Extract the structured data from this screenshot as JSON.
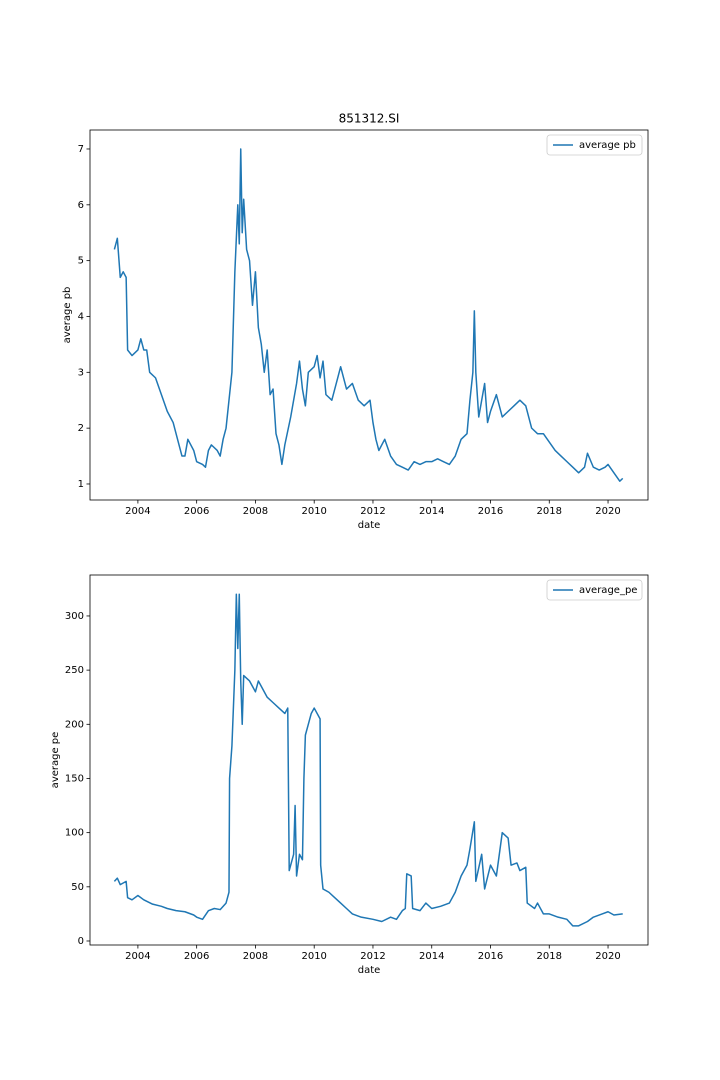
{
  "chart_data": [
    {
      "type": "line",
      "title": "851312.SI",
      "x_label": "date",
      "y_label": "average pb",
      "xlim": [
        2002.37,
        2021.36
      ],
      "ylim": [
        0.713,
        7.34
      ],
      "xticks": [
        2004,
        2006,
        2008,
        2010,
        2012,
        2014,
        2016,
        2018,
        2020
      ],
      "yticks": [
        1,
        2,
        3,
        4,
        5,
        6,
        7
      ],
      "legend": "upper right",
      "grid": false,
      "x": [
        2003.2,
        2003.3,
        2003.4,
        2003.5,
        2003.6,
        2003.65,
        2003.8,
        2004.0,
        2004.1,
        2004.2,
        2004.3,
        2004.4,
        2004.6,
        2004.8,
        2005.0,
        2005.2,
        2005.4,
        2005.5,
        2005.6,
        2005.7,
        2005.9,
        2006.0,
        2006.2,
        2006.3,
        2006.4,
        2006.5,
        2006.7,
        2006.8,
        2006.9,
        2007.0,
        2007.1,
        2007.2,
        2007.3,
        2007.4,
        2007.45,
        2007.5,
        2007.55,
        2007.6,
        2007.7,
        2007.8,
        2007.9,
        2008.0,
        2008.1,
        2008.2,
        2008.3,
        2008.4,
        2008.5,
        2008.6,
        2008.7,
        2008.8,
        2008.9,
        2009.0,
        2009.2,
        2009.4,
        2009.5,
        2009.6,
        2009.7,
        2009.8,
        2010.0,
        2010.1,
        2010.2,
        2010.3,
        2010.4,
        2010.6,
        2010.8,
        2010.9,
        2011.1,
        2011.3,
        2011.5,
        2011.7,
        2011.9,
        2012.0,
        2012.1,
        2012.2,
        2012.4,
        2012.6,
        2012.8,
        2013.0,
        2013.2,
        2013.4,
        2013.6,
        2013.8,
        2014.0,
        2014.2,
        2014.4,
        2014.6,
        2014.8,
        2015.0,
        2015.2,
        2015.3,
        2015.4,
        2015.45,
        2015.5,
        2015.6,
        2015.8,
        2015.9,
        2016.0,
        2016.2,
        2016.4,
        2016.6,
        2016.8,
        2017.0,
        2017.2,
        2017.4,
        2017.6,
        2017.8,
        2018.0,
        2018.2,
        2018.4,
        2018.6,
        2018.8,
        2019.0,
        2019.2,
        2019.3,
        2019.5,
        2019.7,
        2019.9,
        2020.0,
        2020.2,
        2020.4,
        2020.5
      ],
      "series": [
        {
          "name": "average pb",
          "color": "#1f77b4",
          "values": [
            5.2,
            5.4,
            4.7,
            4.8,
            4.7,
            3.4,
            3.3,
            3.4,
            3.6,
            3.4,
            3.4,
            3.0,
            2.9,
            2.6,
            2.3,
            2.1,
            1.7,
            1.5,
            1.5,
            1.8,
            1.6,
            1.4,
            1.35,
            1.3,
            1.6,
            1.7,
            1.6,
            1.5,
            1.8,
            2.0,
            2.5,
            3.0,
            4.8,
            6.0,
            5.3,
            7.0,
            5.5,
            6.1,
            5.2,
            5.0,
            4.2,
            4.8,
            3.8,
            3.5,
            3.0,
            3.4,
            2.6,
            2.7,
            1.9,
            1.7,
            1.35,
            1.7,
            2.2,
            2.8,
            3.2,
            2.7,
            2.4,
            3.0,
            3.1,
            3.3,
            2.9,
            3.2,
            2.6,
            2.5,
            2.9,
            3.1,
            2.7,
            2.8,
            2.5,
            2.4,
            2.5,
            2.1,
            1.8,
            1.6,
            1.8,
            1.5,
            1.35,
            1.3,
            1.25,
            1.4,
            1.35,
            1.4,
            1.4,
            1.45,
            1.4,
            1.35,
            1.5,
            1.8,
            1.9,
            2.5,
            3.0,
            4.1,
            3.0,
            2.2,
            2.8,
            2.1,
            2.3,
            2.6,
            2.2,
            2.3,
            2.4,
            2.5,
            2.4,
            2.0,
            1.9,
            1.9,
            1.75,
            1.6,
            1.5,
            1.4,
            1.3,
            1.2,
            1.3,
            1.55,
            1.3,
            1.25,
            1.3,
            1.35,
            1.2,
            1.05,
            1.1
          ]
        }
      ]
    },
    {
      "type": "line",
      "x_label": "date",
      "y_label": "average pe",
      "xlim": [
        2002.37,
        2021.36
      ],
      "ylim": [
        -3.7,
        337.8
      ],
      "xticks": [
        2004,
        2006,
        2008,
        2010,
        2012,
        2014,
        2016,
        2018,
        2020
      ],
      "yticks": [
        0,
        50,
        100,
        150,
        200,
        250,
        300
      ],
      "legend": "upper right",
      "grid": false,
      "x": [
        2003.2,
        2003.3,
        2003.4,
        2003.6,
        2003.65,
        2003.8,
        2004.0,
        2004.2,
        2004.5,
        2004.8,
        2005.0,
        2005.3,
        2005.6,
        2005.9,
        2006.0,
        2006.2,
        2006.4,
        2006.6,
        2006.8,
        2007.0,
        2007.1,
        2007.12,
        2007.2,
        2007.3,
        2007.35,
        2007.4,
        2007.45,
        2007.5,
        2007.55,
        2007.6,
        2007.8,
        2008.0,
        2008.1,
        2008.2,
        2008.4,
        2008.6,
        2008.8,
        2009.0,
        2009.1,
        2009.15,
        2009.3,
        2009.35,
        2009.4,
        2009.5,
        2009.6,
        2009.65,
        2009.7,
        2009.8,
        2009.9,
        2010.0,
        2010.2,
        2010.22,
        2010.3,
        2010.5,
        2010.7,
        2010.9,
        2011.1,
        2011.3,
        2011.6,
        2012.0,
        2012.3,
        2012.6,
        2012.8,
        2013.0,
        2013.1,
        2013.15,
        2013.3,
        2013.35,
        2013.6,
        2013.8,
        2014.0,
        2014.3,
        2014.6,
        2014.8,
        2015.0,
        2015.2,
        2015.3,
        2015.45,
        2015.5,
        2015.7,
        2015.8,
        2016.0,
        2016.2,
        2016.4,
        2016.6,
        2016.7,
        2016.9,
        2017.0,
        2017.2,
        2017.25,
        2017.5,
        2017.6,
        2017.8,
        2018.0,
        2018.3,
        2018.6,
        2018.8,
        2019.0,
        2019.3,
        2019.5,
        2019.8,
        2020.0,
        2020.2,
        2020.5
      ],
      "series": [
        {
          "name": "average_pe",
          "color": "#1f77b4",
          "values": [
            55,
            58,
            52,
            55,
            40,
            38,
            42,
            38,
            34,
            32,
            30,
            28,
            27,
            24,
            22,
            20,
            28,
            30,
            29,
            35,
            45,
            150,
            180,
            250,
            320,
            270,
            320,
            240,
            200,
            245,
            240,
            230,
            240,
            235,
            225,
            220,
            215,
            210,
            215,
            65,
            80,
            125,
            60,
            80,
            75,
            150,
            190,
            200,
            210,
            215,
            205,
            70,
            48,
            45,
            40,
            35,
            30,
            25,
            22,
            20,
            18,
            22,
            20,
            28,
            30,
            62,
            60,
            30,
            28,
            35,
            30,
            32,
            35,
            45,
            60,
            70,
            85,
            110,
            55,
            80,
            48,
            70,
            60,
            100,
            95,
            70,
            72,
            65,
            68,
            35,
            30,
            35,
            25,
            25,
            22,
            20,
            14,
            14,
            18,
            22,
            25,
            27,
            24,
            25
          ]
        }
      ]
    }
  ]
}
